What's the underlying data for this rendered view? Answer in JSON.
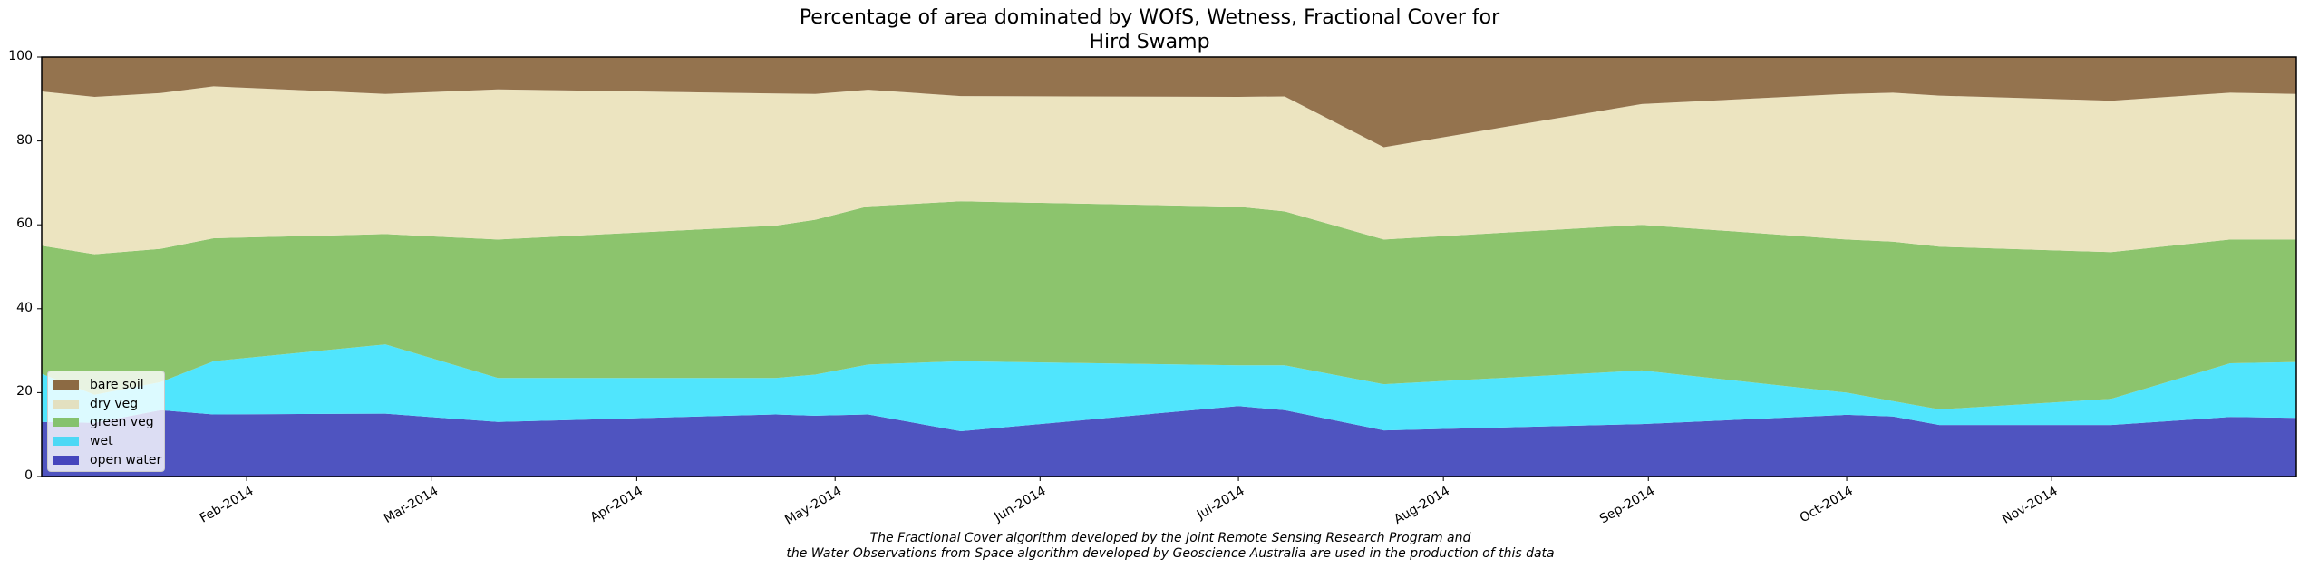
{
  "title": {
    "line1": "Percentage of area dominated by WOfS, Wetness, Fractional Cover for",
    "line2": "Hird Swamp"
  },
  "footnote": {
    "line1": "The Fractional Cover algorithm developed by the Joint Remote Sensing Research Program and",
    "line2": "the Water Observations from Space algorithm developed by Geoscience Australia are used in the production of this data"
  },
  "legend": {
    "items": [
      {
        "label": "bare soil",
        "color": "#8c6a43"
      },
      {
        "label": "dry veg",
        "color": "#e3e0c0"
      },
      {
        "label": "green veg",
        "color": "#85c26d"
      },
      {
        "label": "wet",
        "color": "#4dd8f5"
      },
      {
        "label": "open water",
        "color": "#4545bd"
      }
    ]
  },
  "colors": {
    "bare_soil": "#94734e",
    "dry_veg": "#ece4c0",
    "green_veg": "#8cc46d",
    "wet": "#50e5fd",
    "open_water": "#4f54c0"
  },
  "chart_data": {
    "type": "area",
    "stacked": true,
    "title": "Percentage of area dominated by WOfS, Wetness, Fractional Cover for Hird Swamp",
    "xlabel": "",
    "ylabel": "",
    "ylim": [
      0,
      100
    ],
    "yticks": [
      0,
      20,
      40,
      60,
      80,
      100
    ],
    "xticks": [
      "Feb-2014",
      "Mar-2014",
      "Apr-2014",
      "May-2014",
      "Jun-2014",
      "Jul-2014",
      "Aug-2014",
      "Sep-2014",
      "Oct-2014",
      "Nov-2014"
    ],
    "legend_position": "lower left",
    "grid": false,
    "x": [
      "2014-01-01",
      "2014-01-09",
      "2014-01-19",
      "2014-01-27",
      "2014-02-22",
      "2014-03-11",
      "2014-04-22",
      "2014-04-28",
      "2014-05-06",
      "2014-05-20",
      "2014-07-01",
      "2014-07-08",
      "2014-07-23",
      "2014-08-31",
      "2014-10-01",
      "2014-10-08",
      "2014-10-15",
      "2014-11-10",
      "2014-11-28",
      "2014-12-08"
    ],
    "series": [
      {
        "name": "open water",
        "values": [
          13.0,
          12.8,
          15.8,
          14.8,
          15.0,
          13.0,
          14.8,
          14.5,
          14.8,
          10.8,
          16.8,
          15.8,
          11.0,
          12.5,
          14.7,
          14.3,
          12.3,
          12.3,
          14.2,
          14.0
        ]
      },
      {
        "name": "wet",
        "values": [
          11.5,
          6.7,
          6.7,
          12.7,
          16.5,
          10.5,
          8.7,
          9.8,
          11.9,
          16.7,
          9.7,
          10.7,
          11.0,
          12.8,
          5.3,
          3.7,
          3.7,
          6.2,
          12.8,
          13.3
        ]
      },
      {
        "name": "green veg",
        "values": [
          30.5,
          33.5,
          31.8,
          29.3,
          26.3,
          33.0,
          36.3,
          36.9,
          37.7,
          38.1,
          37.8,
          36.7,
          34.5,
          34.7,
          36.5,
          38.0,
          38.8,
          35.0,
          29.5,
          29.2
        ]
      },
      {
        "name": "dry veg",
        "values": [
          36.8,
          37.5,
          37.1,
          36.2,
          33.4,
          35.8,
          31.5,
          30.0,
          27.8,
          25.1,
          26.2,
          27.4,
          22.0,
          28.8,
          34.7,
          35.5,
          36.0,
          36.1,
          35.0,
          34.7
        ]
      },
      {
        "name": "bare soil",
        "values": [
          8.2,
          9.5,
          8.6,
          7.0,
          8.8,
          7.7,
          8.7,
          8.8,
          7.8,
          9.3,
          9.5,
          9.4,
          21.5,
          11.2,
          8.8,
          8.5,
          9.2,
          10.4,
          8.5,
          8.8
        ]
      }
    ]
  },
  "axes": {
    "y_tick_labels": [
      "0",
      "20",
      "40",
      "60",
      "80",
      "100"
    ],
    "x_tick_labels": [
      "Feb-2014",
      "Mar-2014",
      "Apr-2014",
      "May-2014",
      "Jun-2014",
      "Jul-2014",
      "Aug-2014",
      "Sep-2014",
      "Oct-2014",
      "Nov-2014"
    ]
  }
}
